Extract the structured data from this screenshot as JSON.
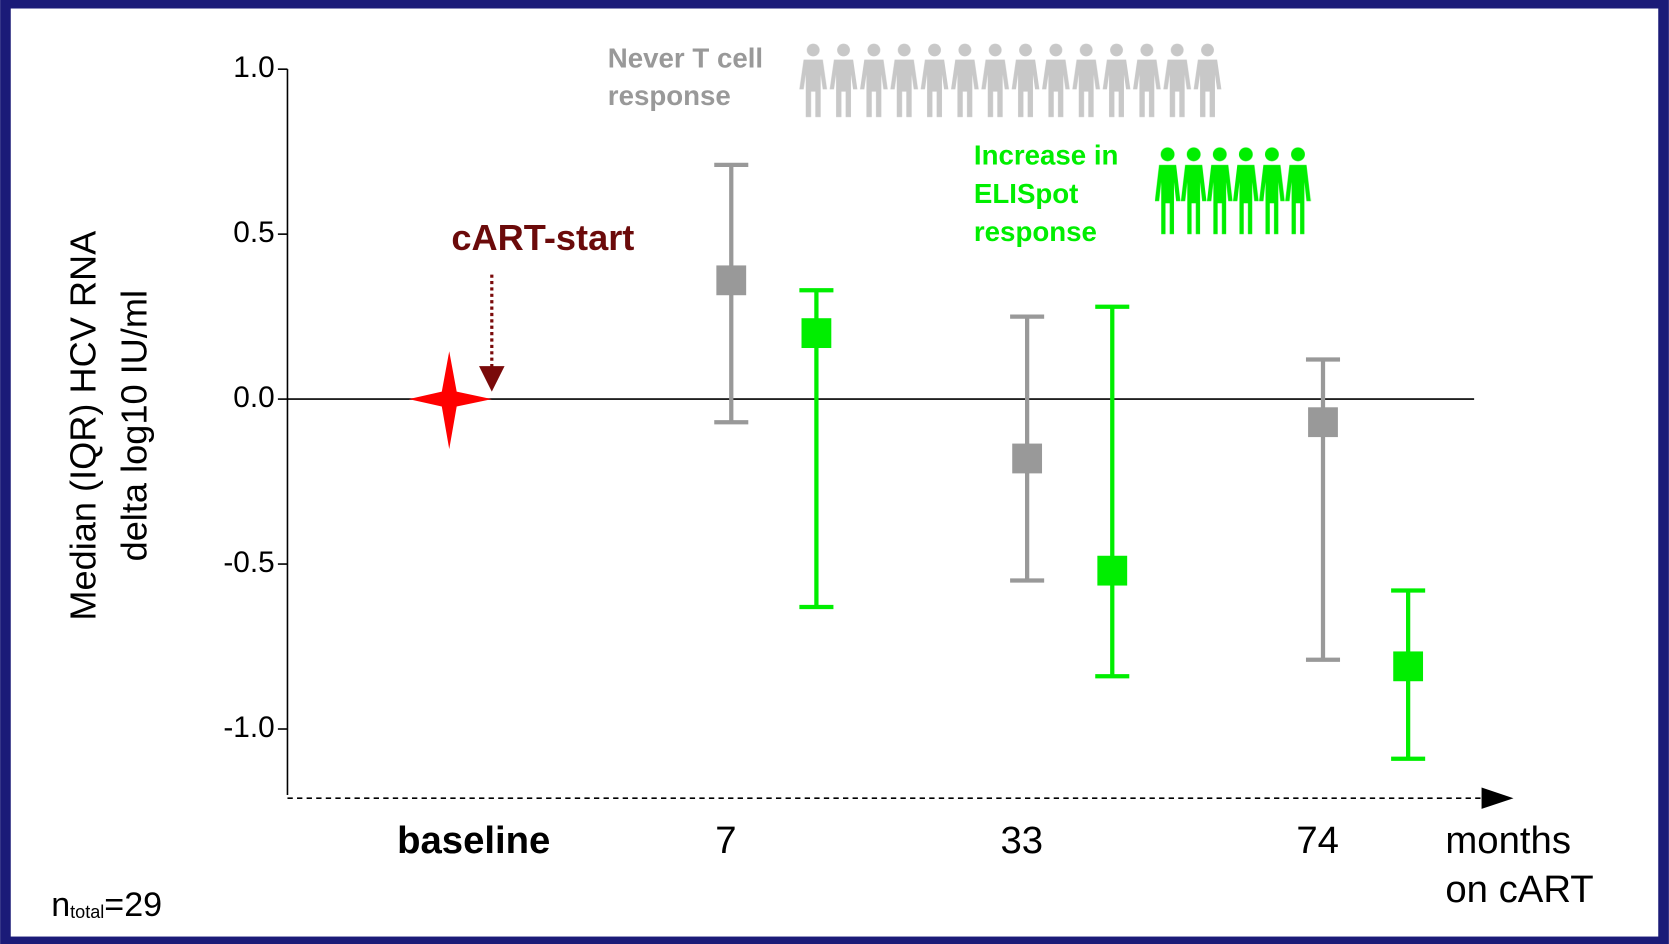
{
  "chart_data": {
    "type": "errorbar",
    "ylabel": "Median (IQR) HCV RNA\ndelta log10 IU/ml",
    "xlabel": "months\non cART",
    "annotation": "cART-start",
    "n_label": {
      "main": "n",
      "sub": "total",
      "rest": "=29"
    },
    "categories": [
      "baseline",
      "7",
      "33",
      "74"
    ],
    "baseline_value": 0,
    "baseline_color": "#ff0000",
    "ylim": [
      -1.2,
      1.0
    ],
    "yticks": [
      {
        "value": 1,
        "label": "1.0"
      },
      {
        "value": 0.5,
        "label": "0.5"
      },
      {
        "value": 0,
        "label": "0.0"
      },
      {
        "value": -0.5,
        "label": "-0.5"
      },
      {
        "value": -1,
        "label": "-1.0"
      }
    ],
    "series": [
      {
        "name": "Never T cell\nresponse",
        "color": "#999999",
        "values": [
          null,
          0.36,
          -0.18,
          -0.07
        ],
        "low": [
          null,
          -0.07,
          -0.55,
          -0.79
        ],
        "high": [
          null,
          0.71,
          0.25,
          0.12
        ]
      },
      {
        "name": "Increase in\nELISpot\nresponse",
        "color": "#00ee00",
        "values": [
          null,
          0.2,
          -0.52,
          -0.81
        ],
        "low": [
          null,
          -0.63,
          -0.84,
          -1.09
        ],
        "high": [
          null,
          0.33,
          0.28,
          -0.58
        ]
      }
    ]
  }
}
